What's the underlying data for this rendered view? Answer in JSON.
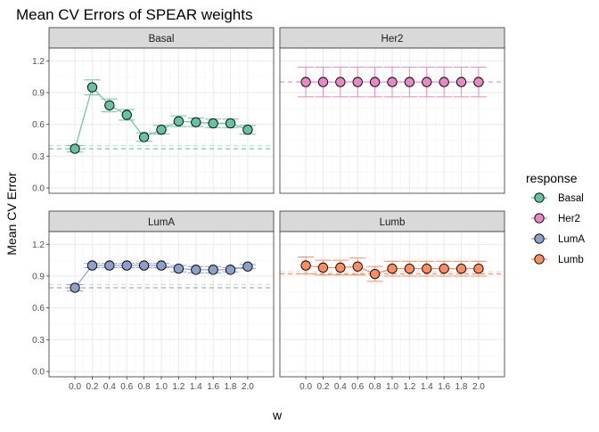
{
  "chart_data": {
    "type": "line",
    "title": "Mean CV Errors of SPEAR weights",
    "xlabel": "w",
    "ylabel": "Mean CV Error",
    "x": [
      0.0,
      0.2,
      0.4,
      0.6,
      0.8,
      1.0,
      1.2,
      1.4,
      1.6,
      1.8,
      2.0
    ],
    "x_tick_labels": [
      "0.0",
      "0.2",
      "0.4",
      "0.6",
      "0.8",
      "1.0",
      "1.2",
      "1.4",
      "1.6",
      "1.8",
      "2.0"
    ],
    "ylim": [
      -0.05,
      1.32
    ],
    "y_ticks": [
      0.0,
      0.3,
      0.6,
      0.9,
      1.2
    ],
    "y_tick_labels": [
      "0.0",
      "0.3",
      "0.6",
      "0.9",
      "1.2"
    ],
    "grid": true,
    "legend": {
      "title": "response",
      "position": "right"
    },
    "facets": [
      {
        "label": "Basal",
        "color": "#66C2A5",
        "values": [
          0.37,
          0.95,
          0.78,
          0.69,
          0.48,
          0.55,
          0.63,
          0.62,
          0.61,
          0.61,
          0.55
        ],
        "errors": [
          0.03,
          0.07,
          0.06,
          0.05,
          0.04,
          0.04,
          0.05,
          0.04,
          0.04,
          0.04,
          0.04
        ],
        "reference_lines": [
          0.37,
          0.4
        ]
      },
      {
        "label": "Her2",
        "color": "#E78AC3",
        "values": [
          1.0,
          1.0,
          1.0,
          1.0,
          1.0,
          1.0,
          1.0,
          1.0,
          1.0,
          1.0,
          1.0
        ],
        "errors": [
          0.14,
          0.14,
          0.14,
          0.14,
          0.14,
          0.14,
          0.14,
          0.14,
          0.14,
          0.14,
          0.14
        ],
        "reference_lines": [
          1.0
        ]
      },
      {
        "label": "LumA",
        "color": "#8DA0CB",
        "values": [
          0.79,
          1.0,
          1.0,
          1.0,
          1.0,
          1.0,
          0.97,
          0.96,
          0.96,
          0.96,
          0.99
        ],
        "errors": [
          0.03,
          0.02,
          0.02,
          0.02,
          0.02,
          0.02,
          0.03,
          0.03,
          0.03,
          0.02,
          0.02
        ],
        "reference_lines": [
          0.79,
          0.82
        ]
      },
      {
        "label": "Lumb",
        "color": "#FC8D62",
        "values": [
          1.0,
          0.98,
          0.98,
          0.99,
          0.92,
          0.97,
          0.97,
          0.97,
          0.97,
          0.97,
          0.97
        ],
        "errors": [
          0.08,
          0.07,
          0.07,
          0.08,
          0.07,
          0.07,
          0.07,
          0.07,
          0.07,
          0.07,
          0.07
        ],
        "reference_lines": [
          0.92,
          0.94
        ]
      }
    ]
  }
}
